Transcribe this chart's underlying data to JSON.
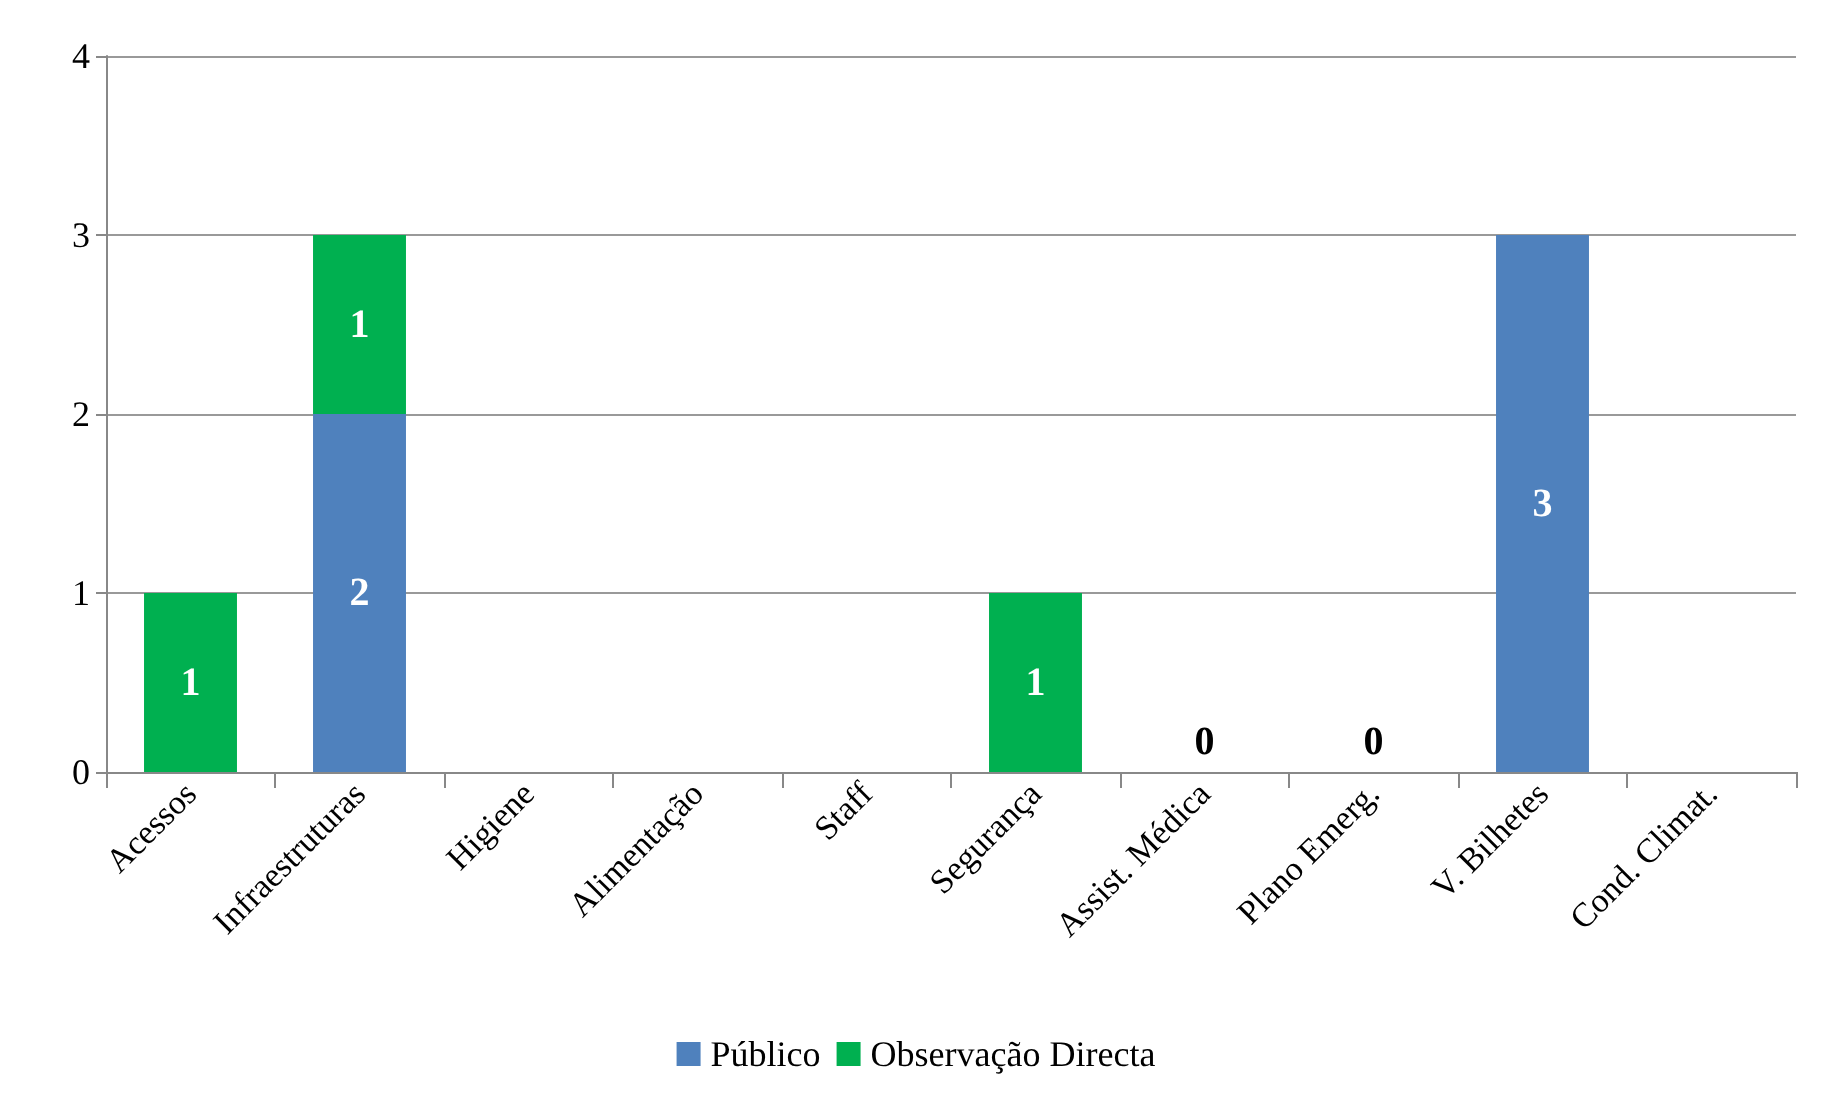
{
  "chart_data": {
    "type": "bar",
    "stacked": true,
    "categories": [
      "Acessos",
      "Infraestruturas",
      "Higiene",
      "Alimentação",
      "Staff",
      "Segurança",
      "Assist. Médica",
      "Plano Emerg.",
      "V. Bilhetes",
      "Cond. Climat."
    ],
    "series": [
      {
        "name": "Público",
        "color": "#4f81bd",
        "values": [
          0,
          2,
          0,
          0,
          0,
          0,
          0,
          0,
          3,
          0
        ],
        "value_labels": [
          null,
          "2",
          null,
          null,
          null,
          null,
          "0",
          "0",
          "3",
          null
        ]
      },
      {
        "name": "Observação Directa",
        "color": "#00b050",
        "values": [
          1,
          1,
          0,
          0,
          0,
          1,
          0,
          0,
          0,
          0
        ],
        "value_labels": [
          "1",
          "1",
          null,
          null,
          null,
          "1",
          null,
          null,
          null,
          null
        ]
      }
    ],
    "ylim": [
      0,
      4
    ],
    "yticks": [
      0,
      1,
      2,
      3,
      4
    ],
    "grid": "y",
    "legend": "bottom"
  }
}
